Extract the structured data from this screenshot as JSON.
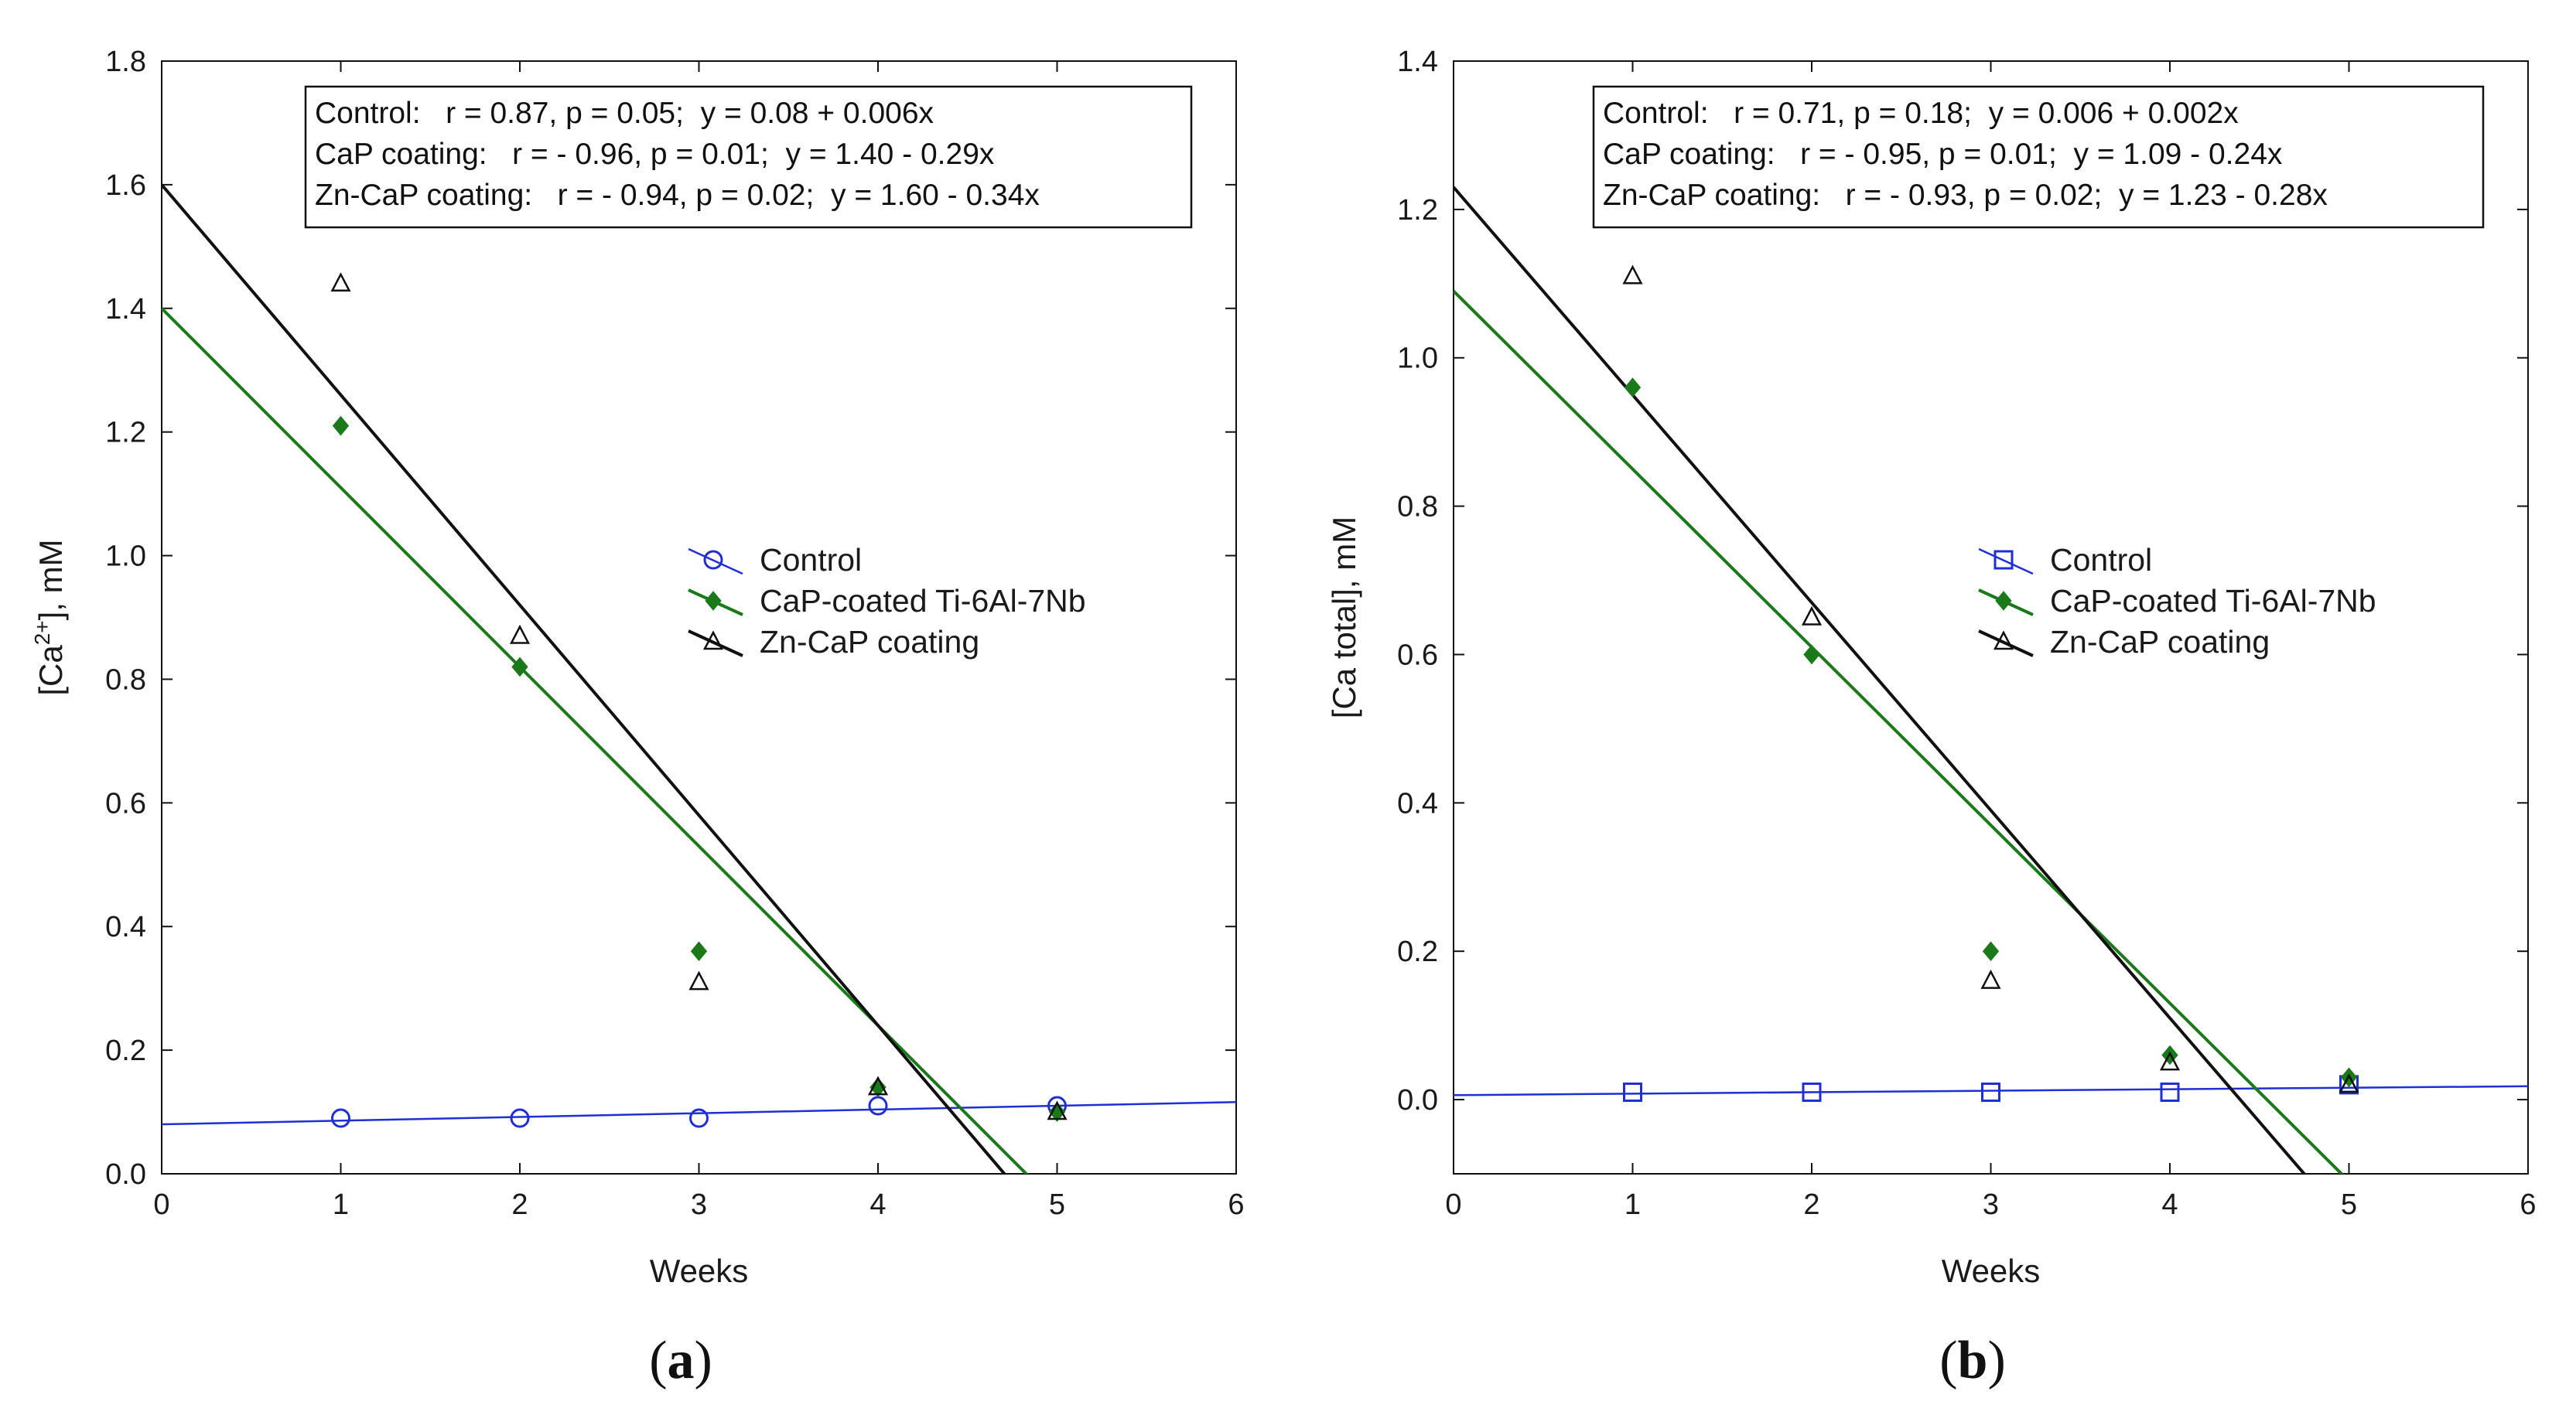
{
  "chart_data": [
    {
      "type": "scatter",
      "panel_label": "(a)",
      "panel_letter": "a",
      "xlabel": "Weeks",
      "ylabel": "[Ca2+], mM",
      "ylabel_parts": {
        "prefix": "[Ca",
        "superscript": "2+",
        "suffix": "], mM"
      },
      "xlim": [
        0,
        6
      ],
      "ylim": [
        0,
        1.8
      ],
      "xticks": [
        "0",
        "1",
        "2",
        "3",
        "4",
        "5",
        "6"
      ],
      "yticks": [
        "0.0",
        "0.2",
        "0.4",
        "0.6",
        "0.8",
        "1.0",
        "1.2",
        "1.4",
        "1.6",
        "1.8"
      ],
      "stats": [
        "Control:   r = 0.87, p = 0.05;  y = 0.08 + 0.006x",
        "CaP coating:   r = - 0.96, p = 0.01;  y = 1.40 - 0.29x",
        "Zn-CaP coating:   r = - 0.94, p = 0.02;  y = 1.60 - 0.34x"
      ],
      "series": [
        {
          "name": "Control",
          "color": "#1f2fd6",
          "marker": "circle",
          "x": [
            1,
            2,
            3,
            4,
            5
          ],
          "y": [
            0.09,
            0.09,
            0.09,
            0.11,
            0.11
          ],
          "fit": {
            "intercept": 0.08,
            "slope": 0.006
          }
        },
        {
          "name": "CaP-coated Ti-6Al-7Nb",
          "color": "#1a7a1a",
          "marker": "diamond",
          "x": [
            1,
            2,
            3,
            4,
            5
          ],
          "y": [
            1.21,
            0.82,
            0.36,
            0.14,
            0.1
          ],
          "fit": {
            "intercept": 1.4,
            "slope": -0.29
          }
        },
        {
          "name": "Zn-CaP coating",
          "color": "#111111",
          "marker": "triangle",
          "x": [
            1,
            2,
            3,
            4,
            5
          ],
          "y": [
            1.44,
            0.87,
            0.31,
            0.14,
            0.1
          ],
          "fit": {
            "intercept": 1.6,
            "slope": -0.34
          }
        }
      ]
    },
    {
      "type": "scatter",
      "panel_label": "(b)",
      "panel_letter": "b",
      "xlabel": "Weeks",
      "ylabel": "[Ca total], mM",
      "ylabel_parts": {
        "prefix": "[Ca total], mM",
        "superscript": "",
        "suffix": ""
      },
      "xlim": [
        0,
        6
      ],
      "ylim": [
        -0.1,
        1.4
      ],
      "xticks": [
        "0",
        "1",
        "2",
        "3",
        "4",
        "5",
        "6"
      ],
      "yticks": [
        "0.0",
        "0.2",
        "0.4",
        "0.6",
        "0.8",
        "1.0",
        "1.2",
        "1.4"
      ],
      "stats": [
        "Control:   r = 0.71, p = 0.18;  y = 0.006 + 0.002x",
        "CaP coating:   r = - 0.95, p = 0.01;  y = 1.09 - 0.24x",
        "Zn-CaP coating:   r = - 0.93, p = 0.02;  y = 1.23 - 0.28x"
      ],
      "series": [
        {
          "name": "Control",
          "color": "#1f2fd6",
          "marker": "square",
          "x": [
            1,
            2,
            3,
            4,
            5
          ],
          "y": [
            0.01,
            0.01,
            0.01,
            0.01,
            0.02
          ],
          "fit": {
            "intercept": 0.006,
            "slope": 0.002
          }
        },
        {
          "name": "CaP-coated Ti-6Al-7Nb",
          "color": "#1a7a1a",
          "marker": "diamond",
          "x": [
            1,
            2,
            3,
            4,
            5
          ],
          "y": [
            0.96,
            0.6,
            0.2,
            0.06,
            0.03
          ],
          "fit": {
            "intercept": 1.09,
            "slope": -0.24
          }
        },
        {
          "name": "Zn-CaP coating",
          "color": "#111111",
          "marker": "triangle",
          "x": [
            1,
            2,
            3,
            4,
            5
          ],
          "y": [
            1.11,
            0.65,
            0.16,
            0.05,
            0.02
          ],
          "fit": {
            "intercept": 1.23,
            "slope": -0.28
          }
        }
      ]
    }
  ]
}
